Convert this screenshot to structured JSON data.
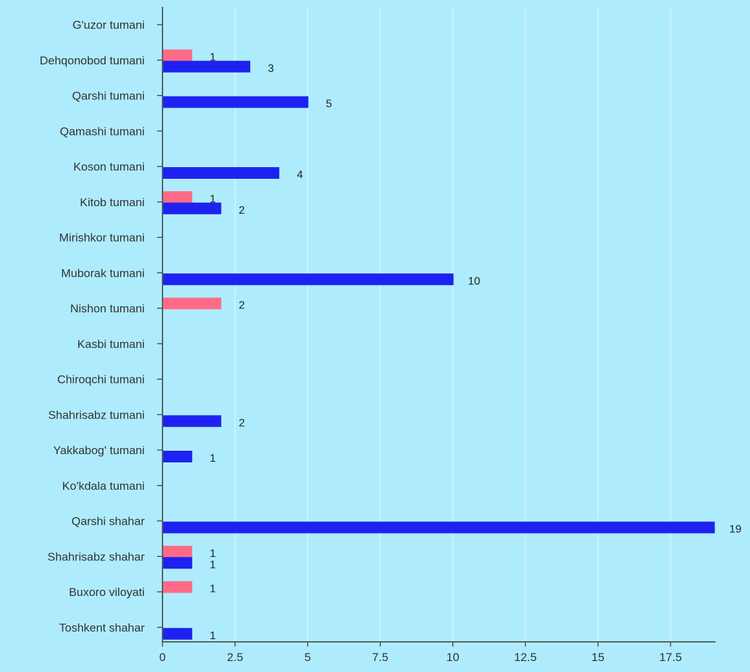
{
  "chart_data": {
    "type": "bar",
    "orientation": "horizontal",
    "categories": [
      "G'uzor tumani",
      "Dehqonobod tumani",
      "Qarshi tumani",
      "Qamashi tumani",
      "Koson tumani",
      "Kitob tumani",
      "Mirishkor tumani",
      "Muborak tumani",
      "Nishon tumani",
      "Kasbi tumani",
      "Chiroqchi tumani",
      "Shahrisabz tumani",
      "Yakkabog' tumani",
      "Ko'kdala tumani",
      "Qarshi shahar",
      "Shahrisabz shahar",
      "Buxoro viloyati",
      "Toshkent shahar"
    ],
    "series": [
      {
        "color": "#ff6b86",
        "values": [
          null,
          1,
          null,
          null,
          null,
          1,
          null,
          null,
          2,
          null,
          null,
          null,
          null,
          null,
          null,
          1,
          1,
          null
        ]
      },
      {
        "color": "#1e22f0",
        "values": [
          null,
          3,
          5,
          null,
          4,
          2,
          null,
          10,
          null,
          null,
          null,
          2,
          1,
          null,
          19,
          1,
          null,
          1
        ]
      }
    ],
    "xlim": [
      0,
      19
    ],
    "x_ticks": [
      "0",
      "2.5",
      "5",
      "7.5",
      "10",
      "12.5",
      "15",
      "17.5"
    ],
    "x_tick_values": [
      0,
      2.5,
      5,
      7.5,
      10,
      12.5,
      15,
      17.5
    ],
    "grid": "vertical",
    "legend": "none",
    "background": "#aeecfd"
  }
}
